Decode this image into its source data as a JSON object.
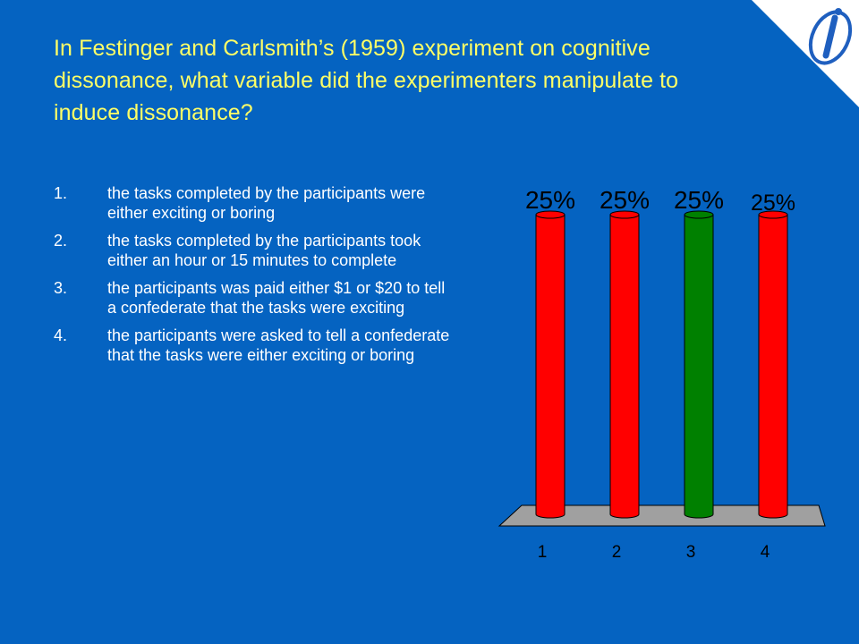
{
  "slide": {
    "question": "In Festinger and Carlsmith’s (1959) experiment on cognitive dissonance, what variable did the experimenters manipulate to induce dissonance?",
    "options": [
      {
        "number": "1.",
        "text": "the tasks completed by the participants were either exciting or boring"
      },
      {
        "number": "2.",
        "text": "the tasks completed by the participants took either an hour or 15 minutes to complete"
      },
      {
        "number": "3.",
        "text": "the participants was paid either $1 or $20 to tell a confederate that the tasks were exciting"
      },
      {
        "number": "4.",
        "text": "the participants were asked to tell a confederate that the tasks were either exciting or boring"
      }
    ],
    "logo_icon": "i-logo-icon"
  },
  "colors": {
    "background": "#0563c1",
    "question_text": "#ffff66",
    "option_text": "#ffffff",
    "bar_wrong": "#ff0000",
    "bar_correct": "#008000",
    "floor": "#a0a0a0"
  },
  "chart_data": {
    "type": "bar",
    "categories": [
      "1",
      "2",
      "3",
      "4"
    ],
    "values": [
      25,
      25,
      25,
      25
    ],
    "data_labels": [
      "25%",
      "25%",
      "25%",
      "25%"
    ],
    "correct_index": 2,
    "ylim": [
      0,
      25
    ],
    "grid": false
  }
}
